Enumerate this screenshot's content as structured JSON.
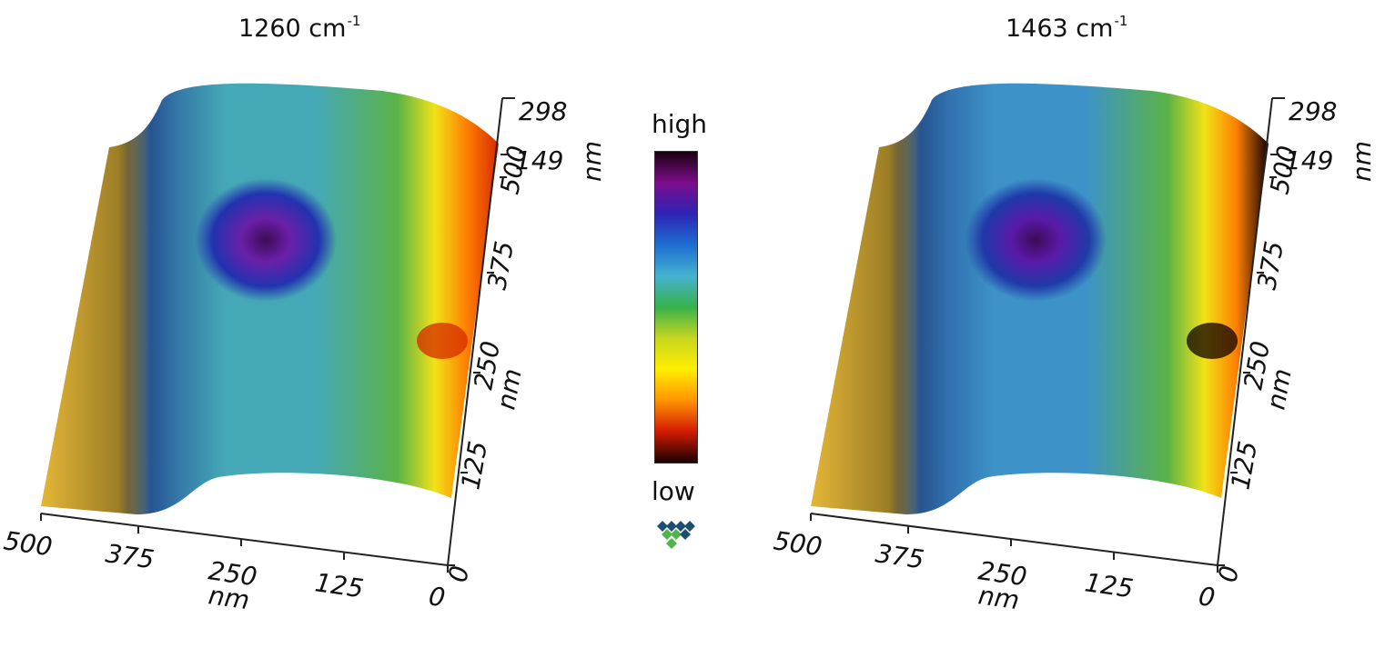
{
  "panels": [
    {
      "title_main": "1260 cm",
      "title_exp": "-1",
      "x_axis": {
        "ticks": [
          "500",
          "375",
          "250",
          "125",
          "0"
        ],
        "unit": "nm"
      },
      "y_axis": {
        "ticks": [
          "0",
          "125",
          "250",
          "375",
          "500"
        ],
        "unit": "nm"
      },
      "z_axis": {
        "ticks": [
          "149",
          "298"
        ],
        "unit": "nm"
      },
      "map_colors": {
        "edge": "#e3b637",
        "main": "#45a8b6",
        "hotspot_core": "#3c0b55",
        "hotspot": "#6a1fa8",
        "hotspot_ring": "#2233b0",
        "right_rim": "#d52a00"
      }
    },
    {
      "title_main": "1463 cm",
      "title_exp": "-1",
      "x_axis": {
        "ticks": [
          "500",
          "375",
          "250",
          "125",
          "0"
        ],
        "unit": "nm"
      },
      "y_axis": {
        "ticks": [
          "0",
          "125",
          "250",
          "375",
          "500"
        ],
        "unit": "nm"
      },
      "z_axis": {
        "ticks": [
          "149",
          "298"
        ],
        "unit": "nm"
      },
      "map_colors": {
        "edge": "#e3b637",
        "main": "#3d93c8",
        "hotspot_core": "#3c0b55",
        "hotspot": "#5a1aa8",
        "hotspot_ring": "#1f3aa8",
        "right_rim": "#100000"
      }
    }
  ],
  "legend": {
    "high_label": "high",
    "low_label": "low",
    "gradient_stops": [
      "#1a0010",
      "#7d0c8c",
      "#2d23b4",
      "#1d6fd0",
      "#45b2d0",
      "#37b24a",
      "#c8d61e",
      "#ffee00",
      "#ff9400",
      "#d31b00",
      "#1a0000"
    ]
  },
  "logo_colors": [
    "#1e4d72",
    "#4fb548"
  ]
}
